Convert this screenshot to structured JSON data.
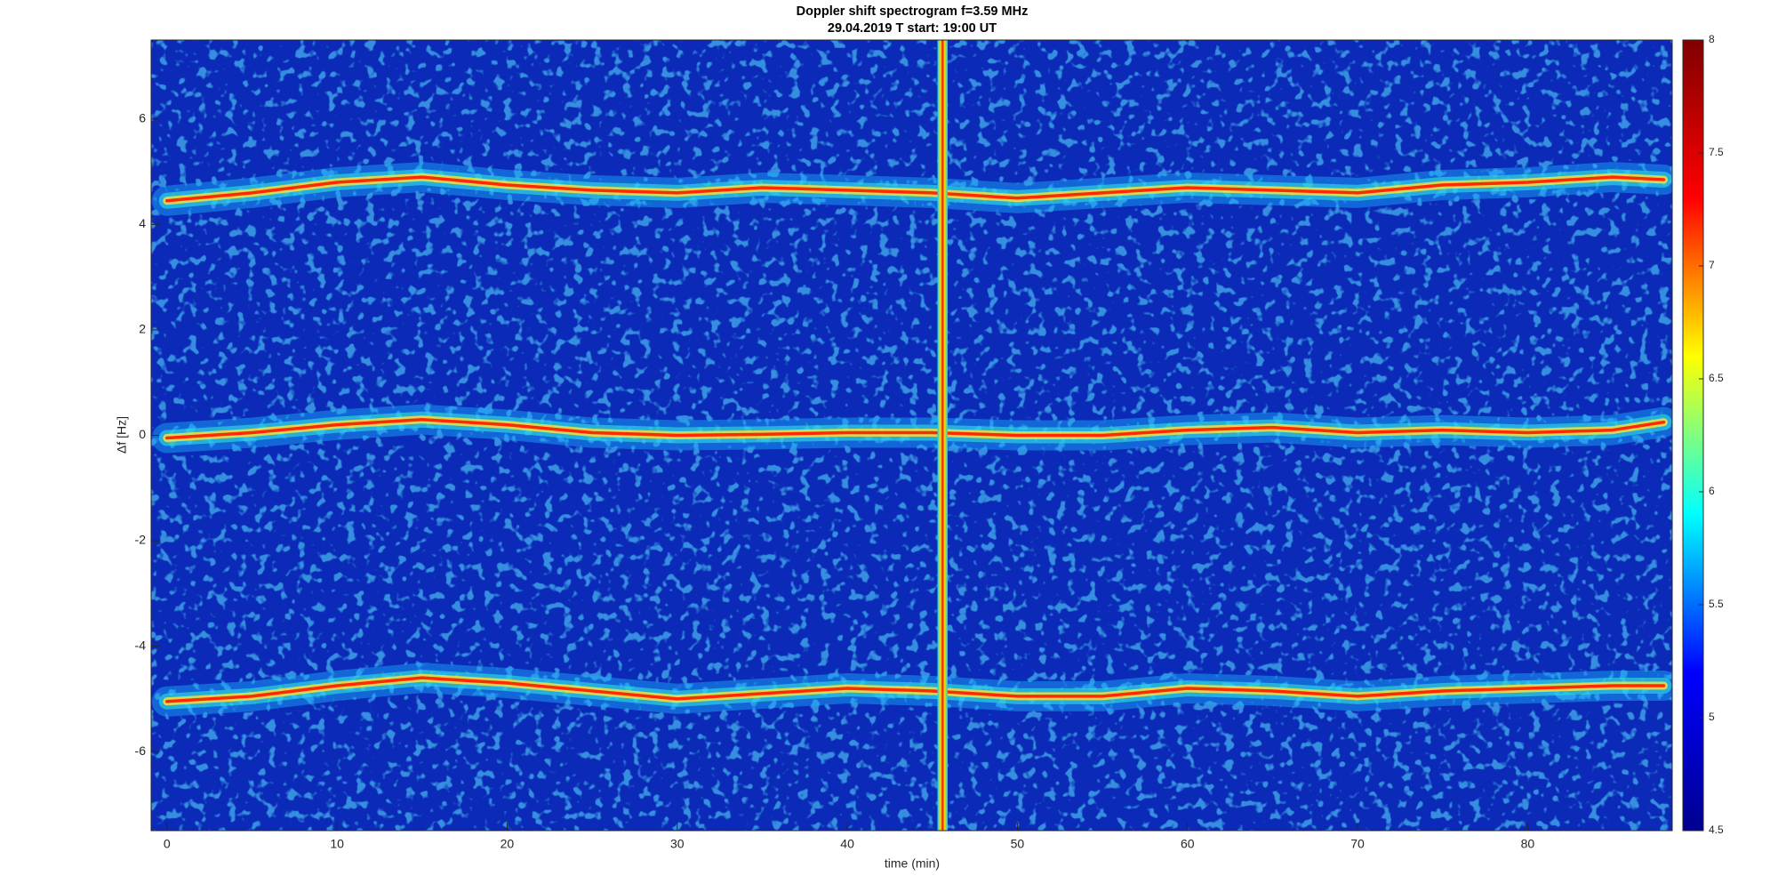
{
  "chart_data": {
    "type": "spectrogram",
    "title": [
      "Doppler shift spectrogram f=3.59 MHz",
      "29.04.2019   T start: 19:00 UT"
    ],
    "xlabel": "time (min)",
    "ylabel": "Δf [Hz]",
    "xlim": [
      -0.93,
      88.5
    ],
    "xticks": [
      0,
      10,
      20,
      30,
      40,
      50,
      60,
      70,
      80
    ],
    "ylim": [
      -7.5,
      7.5
    ],
    "yticks": [
      -6,
      -4,
      -2,
      0,
      2,
      4,
      6
    ],
    "background": "#0b2ab8",
    "x": [
      0,
      5,
      10,
      15,
      20,
      25,
      30,
      35,
      40,
      45,
      50,
      55,
      60,
      65,
      70,
      75,
      80,
      85,
      88
    ],
    "series": [
      {
        "color": "#ff2a00",
        "values": [
          4.45,
          4.6,
          4.8,
          4.9,
          4.75,
          4.65,
          4.6,
          4.7,
          4.65,
          4.6,
          4.5,
          4.6,
          4.7,
          4.65,
          4.6,
          4.75,
          4.8,
          4.9,
          4.85
        ]
      },
      {
        "color": "#ff2a00",
        "values": [
          -0.05,
          0.05,
          0.2,
          0.3,
          0.2,
          0.05,
          0,
          0.02,
          0.05,
          0.05,
          0,
          0,
          0.1,
          0.15,
          0.05,
          0.1,
          0.05,
          0.1,
          0.25
        ]
      },
      {
        "color": "#ff2a00",
        "values": [
          -5.05,
          -4.95,
          -4.75,
          -4.6,
          -4.7,
          -4.85,
          -5.0,
          -4.9,
          -4.8,
          -4.85,
          -4.95,
          -4.95,
          -4.8,
          -4.85,
          -4.95,
          -4.85,
          -4.8,
          -4.75,
          -4.75
        ]
      }
    ],
    "interference_band": [
      45.3,
      45.9
    ],
    "colorbar": {
      "lim": [
        4.5,
        8
      ],
      "ticks": [
        4.5,
        5,
        5.5,
        6,
        6.5,
        7,
        7.5,
        8
      ],
      "colormap": [
        "#00008f",
        "#0000ff",
        "#00ffff",
        "#ffff00",
        "#ff0000",
        "#800000"
      ]
    }
  }
}
